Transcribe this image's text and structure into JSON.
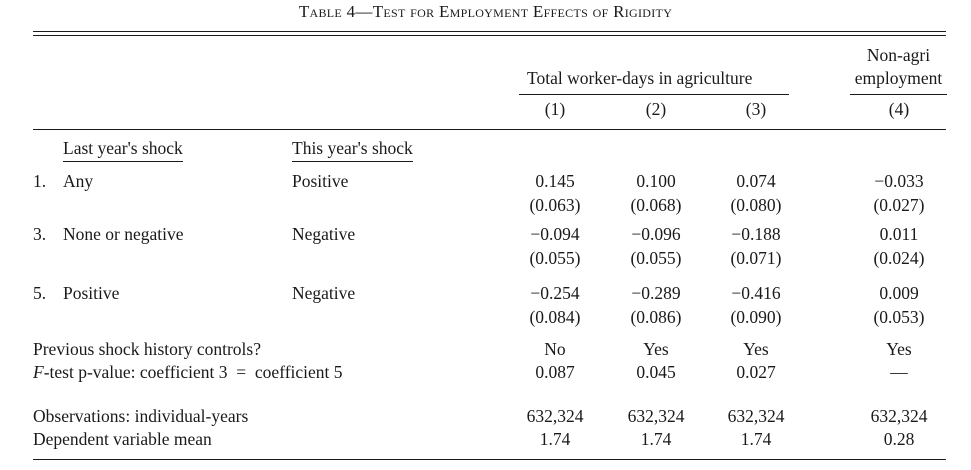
{
  "table": {
    "title": "Table 4—Test for Employment Effects of Rigidity",
    "group_header_agri": "Total worker-days in agriculture",
    "group_header_nonagri_line1": "Non-agri",
    "group_header_nonagri_line2": "employment",
    "columns": [
      "(1)",
      "(2)",
      "(3)",
      "(4)"
    ],
    "row_header_last": "Last year's shock",
    "row_header_this": "This year's shock",
    "rows": [
      {
        "num": "1.",
        "last": "Any",
        "this": "Positive",
        "coef": [
          "0.145",
          "0.100",
          "0.074",
          "−0.033"
        ],
        "se": [
          "(0.063)",
          "(0.068)",
          "(0.080)",
          "(0.027)"
        ]
      },
      {
        "num": "3.",
        "last": "None or negative",
        "this": "Negative",
        "coef": [
          "−0.094",
          "−0.096",
          "−0.188",
          "0.011"
        ],
        "se": [
          "(0.055)",
          "(0.055)",
          "(0.071)",
          "(0.024)"
        ]
      },
      {
        "num": "5.",
        "last": "Positive",
        "this": "Negative",
        "coef": [
          "−0.254",
          "−0.289",
          "−0.416",
          "0.009"
        ],
        "se": [
          "(0.084)",
          "(0.086)",
          "(0.090)",
          "(0.053)"
        ]
      }
    ],
    "controls_label": "Previous shock history controls?",
    "controls": [
      "No",
      "Yes",
      "Yes",
      "Yes"
    ],
    "ftest_label_prefix": "F",
    "ftest_label_rest": "-test p-value: coefficient 3  =  coefficient 5",
    "ftest": [
      "0.087",
      "0.045",
      "0.027",
      "—"
    ],
    "obs_label": "Observations: individual-years",
    "obs": [
      "632,324",
      "632,324",
      "632,324",
      "632,324"
    ],
    "mean_label": "Dependent variable mean",
    "mean": [
      "1.74",
      "1.74",
      "1.74",
      "0.28"
    ]
  }
}
